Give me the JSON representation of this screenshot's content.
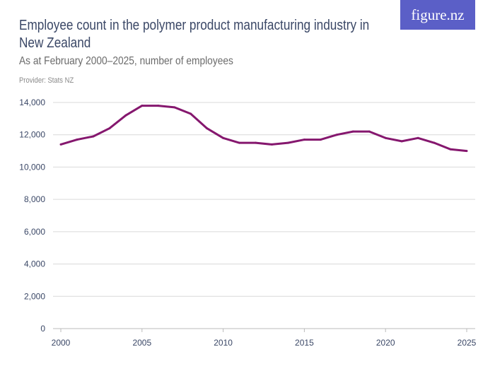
{
  "header": {
    "title": "Employee count in the polymer product manufacturing industry in New Zealand",
    "subtitle": "As at February 2000–2025, number of employees",
    "provider": "Provider: Stats NZ",
    "logo": "figure.nz"
  },
  "colors": {
    "line": "#85176e",
    "logo_bg": "#5b5fc7",
    "grid": "#d9d9d9",
    "text": "#3a4766"
  },
  "chart_data": {
    "type": "line",
    "title": "Employee count in the polymer product manufacturing industry in New Zealand",
    "subtitle": "As at February 2000–2025, number of employees",
    "xlabel": "",
    "ylabel": "",
    "xlim": [
      2000,
      2025
    ],
    "ylim": [
      0,
      14000
    ],
    "xticks": [
      2000,
      2005,
      2010,
      2015,
      2020,
      2025
    ],
    "yticks": [
      0,
      2000,
      4000,
      6000,
      8000,
      10000,
      12000,
      14000
    ],
    "ytick_labels": [
      "0",
      "2,000",
      "4,000",
      "6,000",
      "8,000",
      "10,000",
      "12,000",
      "14,000"
    ],
    "grid": "horizontal",
    "x": [
      2000,
      2001,
      2002,
      2003,
      2004,
      2005,
      2006,
      2007,
      2008,
      2009,
      2010,
      2011,
      2012,
      2013,
      2014,
      2015,
      2016,
      2017,
      2018,
      2019,
      2020,
      2021,
      2022,
      2023,
      2024,
      2025
    ],
    "values": [
      11400,
      11700,
      11900,
      12400,
      13200,
      13800,
      13800,
      13700,
      13300,
      12400,
      11800,
      11500,
      11500,
      11400,
      11500,
      11700,
      11700,
      12000,
      12200,
      12200,
      11800,
      11600,
      11800,
      11500,
      11100,
      11000
    ]
  }
}
